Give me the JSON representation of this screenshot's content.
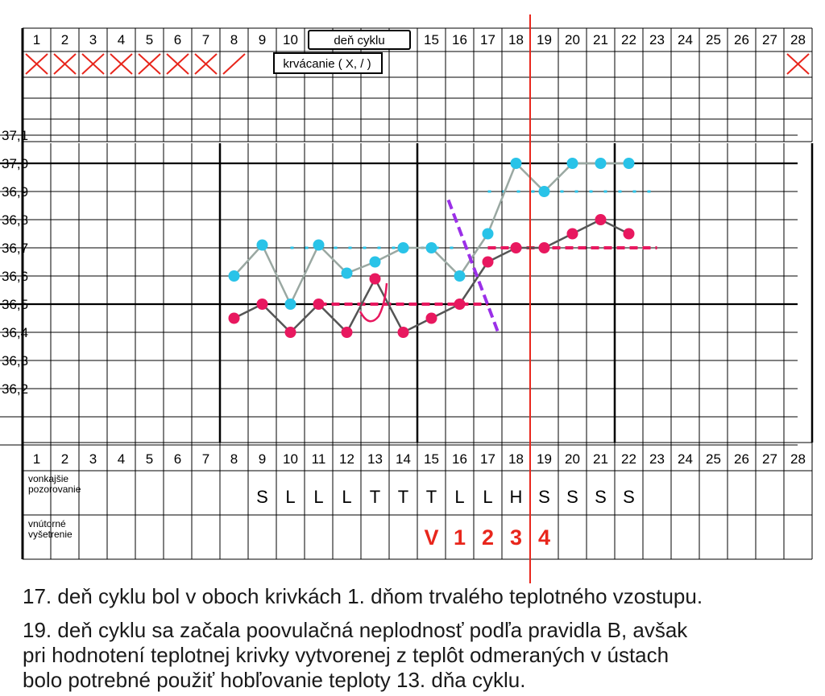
{
  "chart_data": {
    "type": "line",
    "x_days_top": [
      1,
      2,
      3,
      4,
      5,
      6,
      7,
      8,
      9,
      10,
      15,
      16,
      17,
      18,
      19,
      20,
      21,
      22,
      23,
      24,
      25,
      26,
      27,
      28
    ],
    "x_days_bottom": [
      1,
      2,
      3,
      4,
      5,
      6,
      7,
      8,
      9,
      10,
      11,
      12,
      13,
      14,
      15,
      16,
      17,
      18,
      19,
      20,
      21,
      22,
      23,
      24,
      25,
      26,
      27,
      28
    ],
    "top_boxes": {
      "cycle_day_label": "deň cyklu",
      "bleeding_label": "krvácanie ( X, / )"
    },
    "bleeding": {
      "days": [
        1,
        2,
        3,
        4,
        5,
        6,
        7,
        8,
        28
      ],
      "marks": [
        "X",
        "X",
        "X",
        "X",
        "X",
        "X",
        "X",
        "/",
        "X"
      ]
    },
    "y_ticks": [
      "37,1",
      "37,0",
      "36,9",
      "36,8",
      "36,7",
      "36,6",
      "36,5",
      "36,4",
      "36,3",
      "36,2"
    ],
    "ylim": [
      36.1,
      37.2
    ],
    "series": [
      {
        "color": "#29c3e8",
        "line_color": "#9aa8a2",
        "x": [
          8,
          9,
          10,
          11,
          12,
          13,
          14,
          15,
          16,
          17,
          18,
          19,
          20,
          21,
          22
        ],
        "values": [
          36.6,
          36.71,
          36.5,
          36.71,
          36.61,
          36.65,
          36.7,
          36.7,
          36.6,
          36.75,
          37.0,
          36.9,
          37.0,
          37.0,
          37.0
        ]
      },
      {
        "color": "#e8185f",
        "line_color": "#555555",
        "x": [
          8,
          9,
          10,
          11,
          12,
          13,
          14,
          15,
          16,
          17,
          18,
          19,
          20,
          21,
          22
        ],
        "values": [
          36.45,
          36.5,
          36.4,
          36.5,
          36.4,
          36.59,
          36.4,
          36.45,
          36.5,
          36.65,
          36.7,
          36.7,
          36.75,
          36.8,
          36.75
        ]
      }
    ],
    "cover_lines": [
      {
        "color": "#29c3e8",
        "from_day": 10,
        "to_day": 16,
        "value": 36.7
      },
      {
        "color": "#29c3e8",
        "from_day": 17,
        "to_day": 23,
        "value": 36.9
      },
      {
        "color": "#e8185f",
        "from_day": 11,
        "to_day": 17,
        "value": 36.5
      },
      {
        "color": "#e8185f",
        "from_day": 17,
        "to_day": 23,
        "value": 36.7
      }
    ],
    "separator_line": {
      "color": "#9b30e8",
      "from": [
        15.6,
        36.87
      ],
      "to": [
        17.4,
        36.39
      ]
    },
    "marker_day": 18.5,
    "row_labels": {
      "external": [
        "vonkajšie",
        "pozorovanie"
      ],
      "internal": [
        "vnútorné",
        "vyšetrenie"
      ]
    },
    "external_obs": {
      "days": [
        9,
        10,
        11,
        12,
        13,
        14,
        15,
        16,
        17,
        18,
        19,
        20,
        21,
        22
      ],
      "letters": [
        "S",
        "L",
        "L",
        "L",
        "T",
        "T",
        "T",
        "L",
        "L",
        "H",
        "S",
        "S",
        "S",
        "S"
      ]
    },
    "internal_obs": {
      "days": [
        15,
        16,
        17,
        18,
        19
      ],
      "labels": [
        "V",
        "1",
        "2",
        "3",
        "4"
      ],
      "color": "#e8261c"
    }
  },
  "captions": {
    "line1": "17. deň cyklu bol v oboch krivkách 1. dňom trvalého teplotného vzostupu.",
    "line2": "19. deň cyklu sa začala poovulačná neplodnosť podľa pravidla B, avšak",
    "line3": "pri hodnotení teplotnej krivky vytvorenej z teplôt odmeraných v ústach",
    "line4": "bolo potrebné použiť hobľovanie teploty 13. dňa cyklu."
  }
}
